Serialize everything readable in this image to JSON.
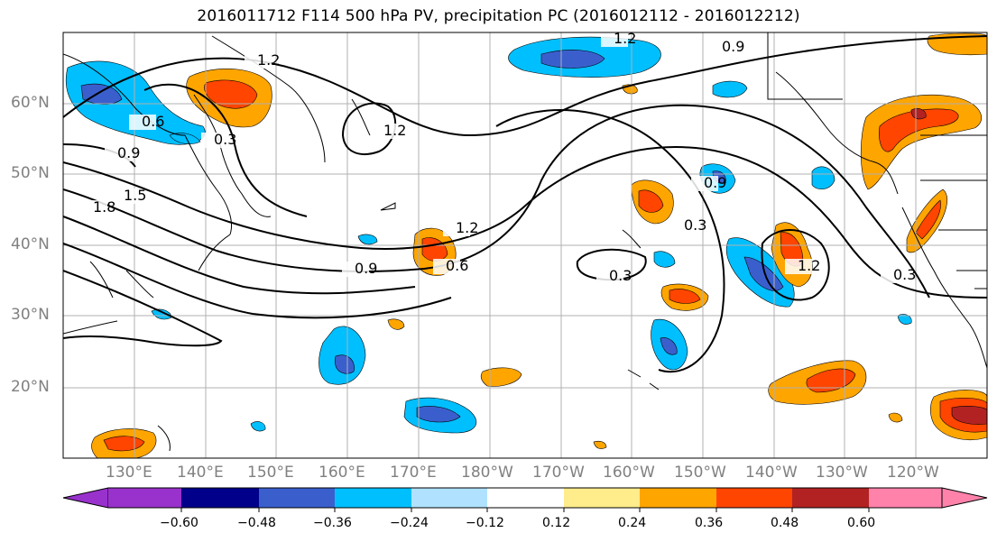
{
  "title": "2016011712 F114 500 hPa PV, precipitation PC (2016012112 - 2016012212)",
  "latitude_labels": [
    "60°N",
    "50°N",
    "40°N",
    "30°N",
    "20°N"
  ],
  "longitude_labels": [
    "130°E",
    "140°E",
    "150°E",
    "160°E",
    "170°E",
    "180°W",
    "170°W",
    "160°W",
    "150°W",
    "140°W",
    "130°W",
    "120°W"
  ],
  "contour_labels": [
    "1.2",
    "0.9",
    "1.2",
    "0.6",
    "0.3",
    "0.9",
    "1.2",
    "1.5",
    "1.8",
    "1.2",
    "0.9",
    "0.6",
    "0.3",
    "0.9",
    "0.3",
    "1.2",
    "0.3"
  ],
  "colorbar": {
    "tick_labels": [
      "−0.60",
      "−0.48",
      "−0.36",
      "−0.24",
      "−0.12",
      "0.12",
      "0.24",
      "0.36",
      "0.48",
      "0.60"
    ],
    "colors": [
      "#9932cc",
      "#00008b",
      "#3a5fcd",
      "#00bfff",
      "#b0e2ff",
      "#ffffff",
      "#ffec8b",
      "#ffa500",
      "#ff4500",
      "#b22222",
      "#ff82ab"
    ]
  },
  "shading_colors": {
    "neg_strong": "#3a5fcd",
    "neg_mid": "#00bfff",
    "neg_weak": "#b0e2ff",
    "pos_weak": "#ffec8b",
    "pos_mid": "#ffa500",
    "pos_strong": "#ff4500",
    "pos_max": "#b22222"
  }
}
